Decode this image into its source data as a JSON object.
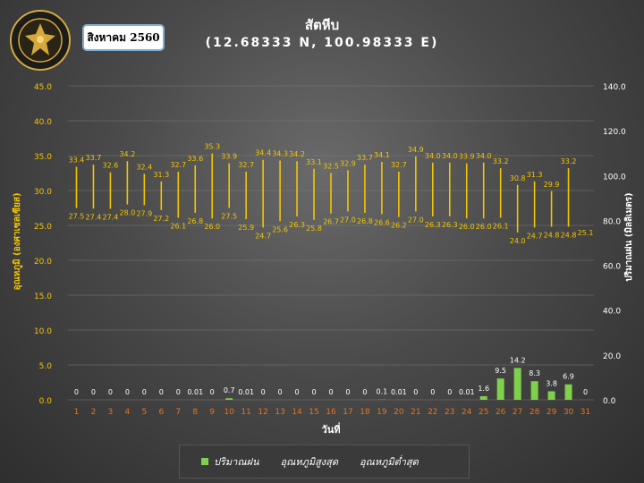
{
  "header": {
    "month": "สิงหาคม 2560",
    "title": "สัตหีบ",
    "subtitle": "(12.68333 N, 100.98333 E)",
    "logo_text": "METEOROLOGICAL DEPARTMENT"
  },
  "legend": {
    "rain": "ปริมาณฝน",
    "max": "อุณหภูมิสูงสุด",
    "min": "อุณหภูมิต่ำสุด"
  },
  "colors": {
    "temp": "#f2c500",
    "rain": "#7fd14c",
    "axis_left": "#f2c500",
    "day_label": "#e8731c"
  },
  "chart_data": {
    "type": "bar",
    "xlabel": "วันที่",
    "ylabel_left": "อุณหภูมิ (องศาเซลเซียส)",
    "ylabel_right": "ปริมาณฝน (มิลลิเมตร)",
    "ylim_left": [
      0,
      45
    ],
    "yticks_left": [
      "0.0",
      "5.0",
      "10.0",
      "15.0",
      "20.0",
      "25.0",
      "30.0",
      "35.0",
      "40.0",
      "45.0"
    ],
    "ylim_right": [
      0,
      140
    ],
    "yticks_right": [
      "0.0",
      "20.0",
      "40.0",
      "60.0",
      "80.0",
      "100.0",
      "120.0",
      "140.0"
    ],
    "grid": true,
    "categories": [
      "1",
      "2",
      "3",
      "4",
      "5",
      "6",
      "7",
      "8",
      "9",
      "10",
      "11",
      "12",
      "13",
      "14",
      "15",
      "16",
      "17",
      "18",
      "19",
      "20",
      "21",
      "22",
      "23",
      "24",
      "25",
      "26",
      "27",
      "28",
      "29",
      "30",
      "31"
    ],
    "series": [
      {
        "name": "อุณหภูมิสูงสุด",
        "values": [
          33.4,
          33.7,
          32.6,
          34.2,
          32.4,
          31.3,
          32.7,
          33.6,
          35.3,
          33.9,
          32.7,
          34.4,
          34.3,
          34.2,
          33.1,
          32.5,
          32.9,
          33.7,
          34.1,
          32.7,
          34.9,
          34.0,
          34.0,
          33.9,
          34.0,
          33.2,
          30.8,
          31.3,
          29.9,
          33.2,
          null
        ]
      },
      {
        "name": "อุณหภูมิต่ำสุด",
        "values": [
          27.5,
          27.4,
          27.4,
          28.0,
          27.9,
          27.2,
          26.1,
          26.8,
          26.0,
          27.5,
          25.9,
          24.7,
          25.6,
          26.3,
          25.8,
          26.7,
          27.0,
          26.8,
          26.6,
          26.2,
          27.0,
          26.3,
          26.3,
          26.0,
          26.0,
          26.1,
          24.0,
          24.7,
          24.8,
          24.8,
          25.1
        ]
      },
      {
        "name": "ปริมาณฝน",
        "values": [
          0,
          0,
          0,
          0,
          0,
          0,
          0,
          0.01,
          0,
          0.7,
          0.01,
          0,
          0,
          0,
          0,
          0,
          0,
          0,
          0.1,
          0.01,
          0,
          0,
          0,
          0.01,
          1.6,
          9.5,
          14.2,
          8.3,
          3.8,
          6.9,
          0
        ]
      }
    ]
  }
}
